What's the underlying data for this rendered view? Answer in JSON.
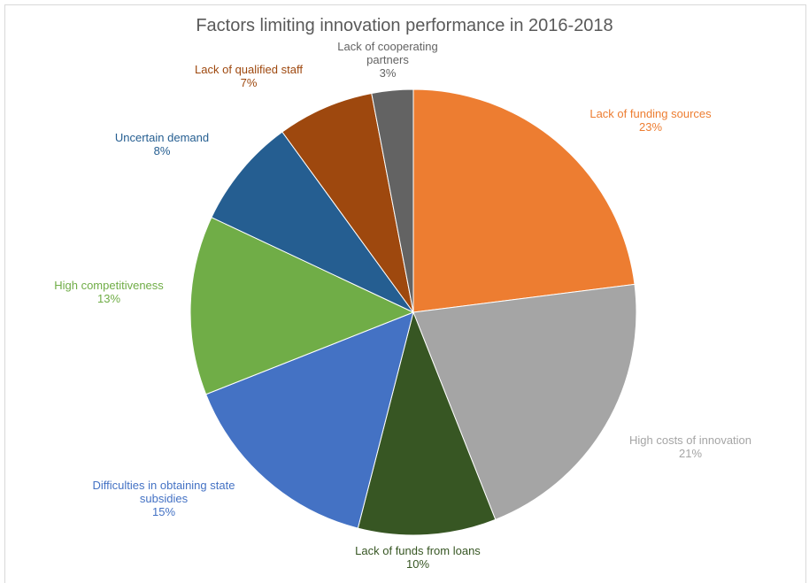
{
  "chart_data": {
    "type": "pie",
    "title": "Factors limiting innovation performance in 2016-2018",
    "categories": [
      "Lack of funding sources",
      "High costs of innovation",
      "Lack of funds from loans",
      "Difficulties in obtaining state subsidies",
      "High competitiveness",
      "Uncertain demand",
      "Lack of qualified staff",
      "Lack of cooperating partners"
    ],
    "values": [
      23,
      21,
      10,
      15,
      13,
      8,
      7,
      3
    ],
    "value_labels": [
      "23%",
      "21%",
      "10%",
      "15%",
      "13%",
      "8%",
      "7%",
      "3%"
    ],
    "colors": [
      "#ed7d31",
      "#a5a5a5",
      "#375623",
      "#4472c4",
      "#70ad47",
      "#255e91",
      "#9e480e",
      "#636363"
    ]
  }
}
